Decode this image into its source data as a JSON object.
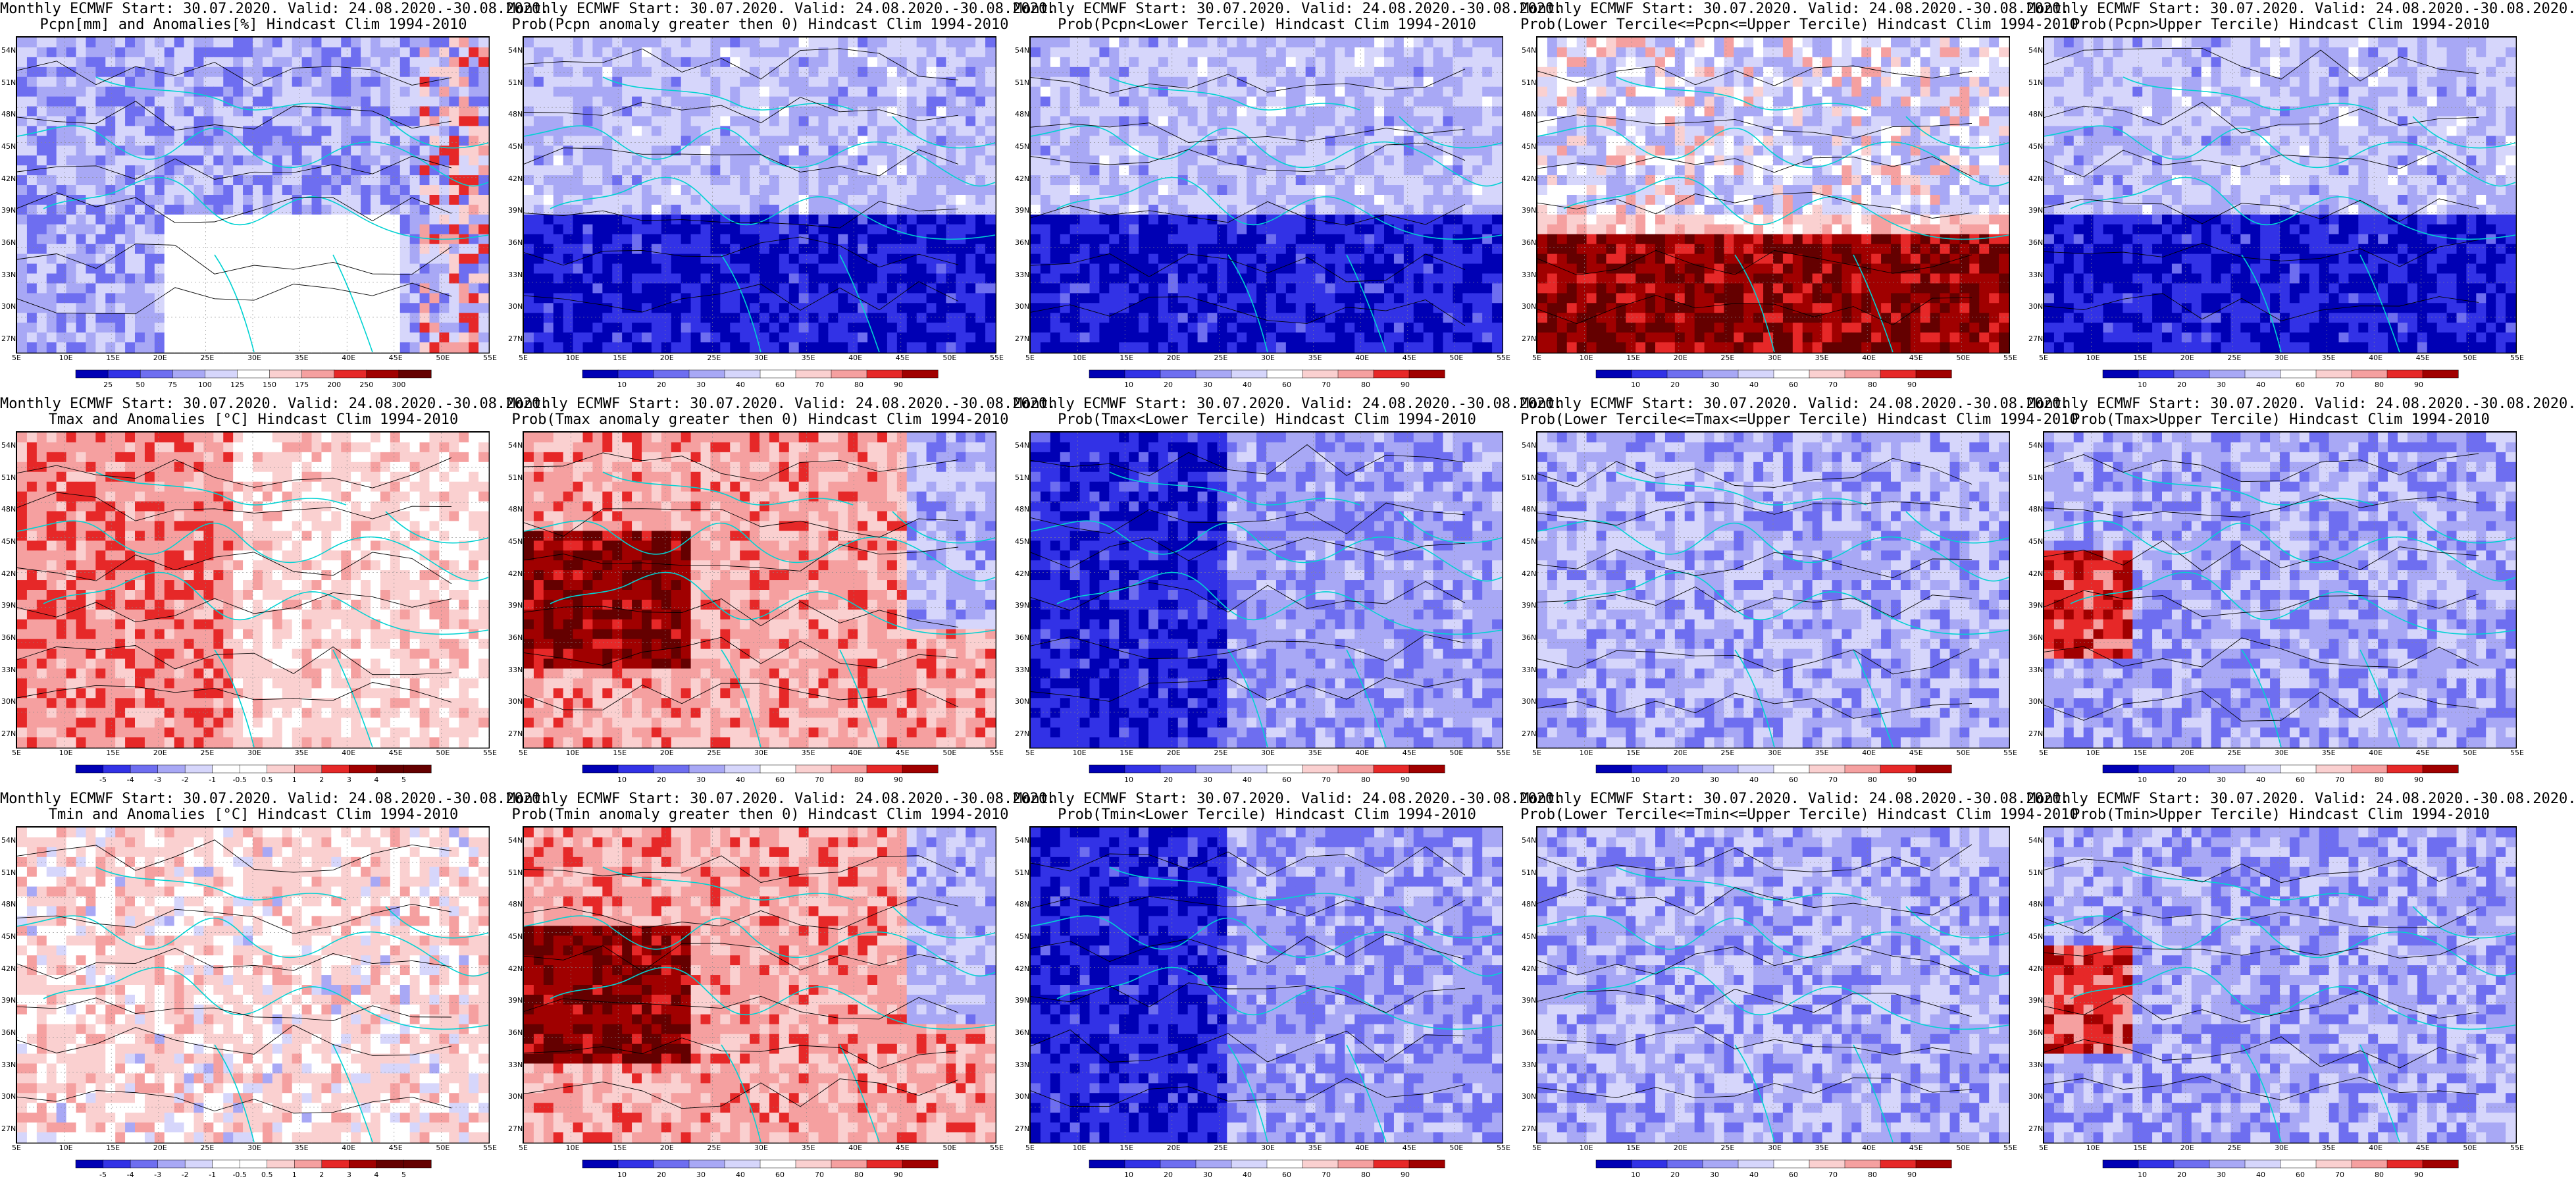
{
  "colors": {
    "deep_blue": "#0000b4",
    "blue": "#3232e6",
    "mid_blue": "#6e6ef0",
    "light_blue": "#a8a8f5",
    "pale_blue": "#d6d6fb",
    "white": "#ffffff",
    "pale_red": "#fad0d0",
    "light_red": "#f5a0a0",
    "red": "#e62828",
    "deep_red": "#a00000",
    "dark_red": "#640000",
    "coastline": "#00d2d2",
    "contour": "#000000"
  },
  "map": {
    "lat_labels": [
      "54N",
      "51N",
      "48N",
      "45N",
      "42N",
      "39N",
      "36N",
      "33N",
      "30N",
      "27N"
    ],
    "lon_labels": [
      "5E",
      "10E",
      "15E",
      "20E",
      "25E",
      "30E",
      "35E",
      "40E",
      "45E",
      "50E",
      "55E"
    ]
  },
  "colorbars": {
    "pcpn_anomaly": [
      "25",
      "50",
      "75",
      "100",
      "125",
      "150",
      "175",
      "200",
      "250",
      "300"
    ],
    "probability": [
      "10",
      "20",
      "30",
      "40",
      "60",
      "70",
      "80",
      "90"
    ],
    "temp_anomaly": [
      "-5",
      "-4",
      "-3",
      "-2",
      "-1",
      "-0.5",
      "0.5",
      "1",
      "2",
      "3",
      "4",
      "5"
    ]
  },
  "panels": [
    {
      "title1": "Monthly ECMWF Start: 30.07.2020. Valid: 24.08.2020.-30.08.2020.",
      "title2": "Pcpn[mm] and Anomalies[%] Hindcast Clim 1994-2010",
      "colorbar": "pcpn_anomaly",
      "scheme": "pcpn",
      "pattern": "anom"
    },
    {
      "title1": "Monthly ECMWF Start: 30.07.2020. Valid: 24.08.2020.-30.08.2020.",
      "title2": "Prob(Pcpn anomaly greater then 0) Hindcast Clim 1994-2010",
      "colorbar": "probability",
      "scheme": "blue",
      "pattern": "southblue"
    },
    {
      "title1": "Monthly ECMWF Start: 30.07.2020. Valid: 24.08.2020.-30.08.2020.",
      "title2": "Prob(Pcpn<Lower Tercile) Hindcast Clim 1994-2010",
      "colorbar": "probability",
      "scheme": "blue",
      "pattern": "southblue"
    },
    {
      "title1": "Monthly ECMWF Start: 30.07.2020. Valid: 24.08.2020.-30.08.2020.",
      "title2": "Prob(Lower Tercile<=Pcpn<=Upper Tercile) Hindcast Clim 1994-2010",
      "colorbar": "probability",
      "scheme": "red",
      "pattern": "southred"
    },
    {
      "title1": "Monthly ECMWF Start: 30.07.2020. Valid: 24.08.2020.-30.08.2020.",
      "title2": "Prob(Pcpn>Upper Tercile) Hindcast Clim 1994-2010",
      "colorbar": "probability",
      "scheme": "blue",
      "pattern": "southblue"
    },
    {
      "title1": "Monthly ECMWF Start: 30.07.2020. Valid: 24.08.2020.-30.08.2020.",
      "title2": "Tmax and Anomalies [°C] Hindcast Clim 1994-2010",
      "colorbar": "temp_anomaly",
      "scheme": "warm",
      "pattern": "westwarm"
    },
    {
      "title1": "Monthly ECMWF Start: 30.07.2020. Valid: 24.08.2020.-30.08.2020.",
      "title2": "Prob(Tmax anomaly greater then 0) Hindcast Clim 1994-2010",
      "colorbar": "probability",
      "scheme": "warm",
      "pattern": "westhot"
    },
    {
      "title1": "Monthly ECMWF Start: 30.07.2020. Valid: 24.08.2020.-30.08.2020.",
      "title2": "Prob(Tmax<Lower Tercile) Hindcast Clim 1994-2010",
      "colorbar": "probability",
      "scheme": "blue",
      "pattern": "westblue"
    },
    {
      "title1": "Monthly ECMWF Start: 30.07.2020. Valid: 24.08.2020.-30.08.2020.",
      "title2": "Prob(Lower Tercile<=Tmax<=Upper Tercile) Hindcast Clim 1994-2010",
      "colorbar": "probability",
      "scheme": "blue",
      "pattern": "mixed"
    },
    {
      "title1": "Monthly ECMWF Start: 30.07.2020. Valid: 24.08.2020.-30.08.2020.",
      "title2": "Prob(Tmax>Upper Tercile) Hindcast Clim 1994-2010",
      "colorbar": "probability",
      "scheme": "blue",
      "pattern": "westred"
    },
    {
      "title1": "Monthly ECMWF Start: 30.07.2020. Valid: 24.08.2020.-30.08.2020.",
      "title2": "Tmin and Anomalies [°C] Hindcast Clim 1994-2010",
      "colorbar": "temp_anomaly",
      "scheme": "warm",
      "pattern": "faint"
    },
    {
      "title1": "Monthly ECMWF Start: 30.07.2020. Valid: 24.08.2020.-30.08.2020.",
      "title2": "Prob(Tmin anomaly greater then 0) Hindcast Clim 1994-2010",
      "colorbar": "probability",
      "scheme": "warm",
      "pattern": "westhot"
    },
    {
      "title1": "Monthly ECMWF Start: 30.07.2020. Valid: 24.08.2020.-30.08.2020.",
      "title2": "Prob(Tmin<Lower Tercile) Hindcast Clim 1994-2010",
      "colorbar": "probability",
      "scheme": "blue",
      "pattern": "westblue"
    },
    {
      "title1": "Monthly ECMWF Start: 30.07.2020. Valid: 24.08.2020.-30.08.2020.",
      "title2": "Prob(Lower Tercile<=Tmin<=Upper Tercile) Hindcast Clim 1994-2010",
      "colorbar": "probability",
      "scheme": "blue",
      "pattern": "mixed"
    },
    {
      "title1": "Monthly ECMWF Start: 30.07.2020. Valid: 24.08.2020.-30.08.2020.",
      "title2": "Prob(Tmin>Upper Tercile) Hindcast Clim 1994-2010",
      "colorbar": "probability",
      "scheme": "blue",
      "pattern": "westred"
    }
  ]
}
